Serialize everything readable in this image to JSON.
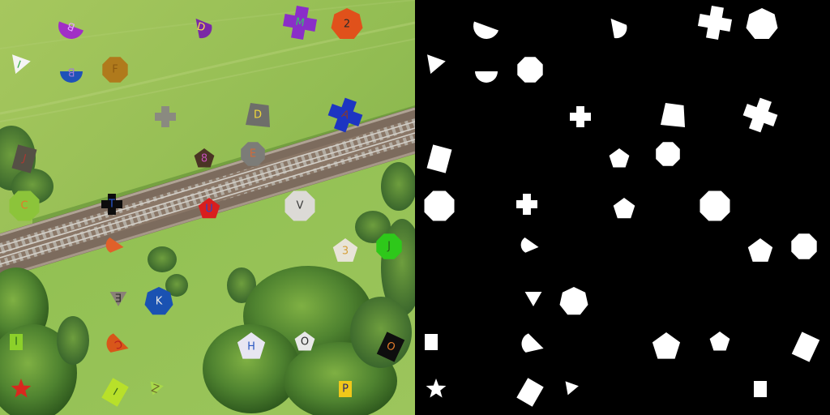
{
  "photo": {
    "colors": {
      "grass_light": "#9cc25a",
      "grass_mid": "#86b24a",
      "grass_dark": "#6f9b3c",
      "rail_bed": "#8c7a6a",
      "rail_steel": "#c9c4bc",
      "tree_dark": "#2f5a1e",
      "tree_mid": "#4d7f2c",
      "tree_light": "#77a83e"
    },
    "targets": [
      {
        "id": "t1",
        "shape": "semicircle",
        "color": "#a12fc6",
        "letter": "B",
        "letter_color": "#e6a6ff"
      },
      {
        "id": "t2",
        "shape": "quarter",
        "color": "#7a2aa6",
        "letter": "D",
        "letter_color": "#f2e14a"
      },
      {
        "id": "t3",
        "shape": "cross",
        "color": "#8a2ec8",
        "letter": "M",
        "letter_color": "#36c26b"
      },
      {
        "id": "t4",
        "shape": "heptagon",
        "color": "#e0511b",
        "letter": "2",
        "letter_color": "#2a2a2a"
      },
      {
        "id": "t5",
        "shape": "triangle",
        "color": "#f4f4f4",
        "letter": "I",
        "letter_color": "#3bb04a"
      },
      {
        "id": "t6",
        "shape": "semicircle",
        "color": "#1f52b8",
        "letter": "B",
        "letter_color": "#9f7ad6"
      },
      {
        "id": "t7",
        "shape": "octagon",
        "color": "#b07a1c",
        "letter": "F",
        "letter_color": "#8d5a10"
      },
      {
        "id": "t8",
        "shape": "cross",
        "color": "#8a8a80",
        "letter": "",
        "letter_color": "#8a8a80"
      },
      {
        "id": "t9",
        "shape": "trapezoid",
        "color": "#6e6e6a",
        "letter": "D",
        "letter_color": "#f2d83a"
      },
      {
        "id": "t10",
        "shape": "cross",
        "color": "#1d35c2",
        "letter": "A",
        "letter_color": "#8a3a2a"
      },
      {
        "id": "t11",
        "shape": "rectangle",
        "color": "#555045",
        "letter": "J",
        "letter_color": "#a83a32"
      },
      {
        "id": "t12",
        "shape": "pentagon",
        "color": "#4a3424",
        "letter": "8",
        "letter_color": "#c44fb8"
      },
      {
        "id": "t13",
        "shape": "octagon",
        "color": "#7c7c78",
        "letter": "E",
        "letter_color": "#d06a3a"
      },
      {
        "id": "t14",
        "shape": "octagon",
        "color": "#8cc43a",
        "letter": "C",
        "letter_color": "#e07a2a"
      },
      {
        "id": "t15",
        "shape": "cross",
        "color": "#0c0c0c",
        "letter": "T",
        "letter_color": "#2a58d0"
      },
      {
        "id": "t16",
        "shape": "pentagon",
        "color": "#d81e1e",
        "letter": "U",
        "letter_color": "#2c46c2"
      },
      {
        "id": "t17",
        "shape": "octagon",
        "color": "#dcdad6",
        "letter": "V",
        "letter_color": "#3a3a3a"
      },
      {
        "id": "t18",
        "shape": "quarter",
        "color": "#e0602a",
        "letter": "",
        "letter_color": "#e0602a"
      },
      {
        "id": "t19",
        "shape": "pentagon",
        "color": "#e8e4d8",
        "letter": "3",
        "letter_color": "#d6a03a"
      },
      {
        "id": "t20",
        "shape": "octagon",
        "color": "#2ec81a",
        "letter": "J",
        "letter_color": "#2a5a1a"
      },
      {
        "id": "t21",
        "shape": "triangle",
        "color": "#8a8078",
        "letter": "E",
        "letter_color": "#2a2a2a"
      },
      {
        "id": "t22",
        "shape": "heptagon",
        "color": "#1a52b2",
        "letter": "K",
        "letter_color": "#e8e8e8"
      },
      {
        "id": "t23",
        "shape": "rectangle",
        "color": "#8cd02a",
        "letter": "I",
        "letter_color": "#2a6a1a"
      },
      {
        "id": "t24",
        "shape": "quarter",
        "color": "#d8561a",
        "letter": "C",
        "letter_color": "#b81e1e"
      },
      {
        "id": "t25",
        "shape": "pentagon",
        "color": "#e8e6f2",
        "letter": "H",
        "letter_color": "#2a58c2"
      },
      {
        "id": "t26",
        "shape": "pentagon",
        "color": "#e8e8e8",
        "letter": "O",
        "letter_color": "#2a2a2a"
      },
      {
        "id": "t27",
        "shape": "rectangle",
        "color": "#0e0e0e",
        "letter": "O",
        "letter_color": "#e07a2a"
      },
      {
        "id": "t28",
        "shape": "star",
        "color": "#d8281e",
        "letter": "",
        "letter_color": "#d8281e"
      },
      {
        "id": "t29",
        "shape": "rectangle",
        "color": "#b8e02a",
        "letter": "I",
        "letter_color": "#3a6a1a"
      },
      {
        "id": "t30",
        "shape": "triangle",
        "color": "#a8d84a",
        "letter": "Z",
        "letter_color": "#6a6a2a"
      },
      {
        "id": "t31",
        "shape": "rectangle",
        "color": "#f0c81a",
        "letter": "P",
        "letter_color": "#2a2a6a"
      }
    ]
  },
  "mask": {
    "background": "#000000",
    "foreground": "#ffffff"
  }
}
